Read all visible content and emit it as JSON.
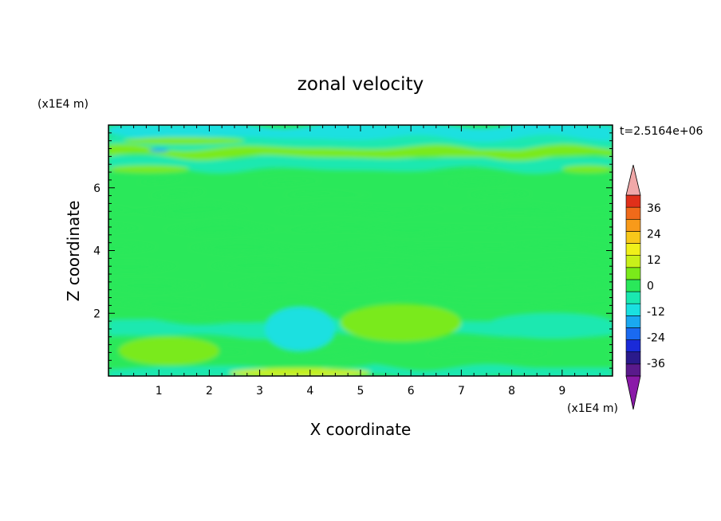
{
  "chart_data": {
    "type": "heatmap",
    "title": "zonal velocity",
    "xlabel": "X coordinate",
    "ylabel": "Z coordinate",
    "x_unit": "(x1E4 m)",
    "y_unit": "(x1E4 m)",
    "time_label": "t=2.5164e+06",
    "xlim": [
      0,
      10
    ],
    "ylim": [
      0,
      8
    ],
    "x_ticks": [
      1,
      2,
      3,
      4,
      5,
      6,
      7,
      8,
      9
    ],
    "y_ticks": [
      2,
      4,
      6
    ],
    "colorbar": {
      "min": -42,
      "max": 42,
      "step": 6,
      "extend": "both",
      "tick_values": [
        36,
        24,
        12,
        0,
        -12,
        -24,
        -36
      ],
      "tick_labels": [
        "36",
        "24",
        "12",
        "0",
        "-12",
        "-24",
        "-36"
      ],
      "colors": [
        "#5a1a8c",
        "#2a1a8c",
        "#1a2ad8",
        "#1a6af0",
        "#1aa8f0",
        "#1ae0e0",
        "#1ae8b0",
        "#2ae85a",
        "#7aea1a",
        "#c8f01a",
        "#f0f01a",
        "#f8c81a",
        "#f89a1a",
        "#f06a1a",
        "#e0301a"
      ],
      "under_color": "#8a1aa8",
      "over_color": "#f0a8a8"
    },
    "bands": [
      {
        "z": 0.15,
        "value": -4
      },
      {
        "z": 0.5,
        "value": 1
      },
      {
        "z": 1.0,
        "value": 3
      },
      {
        "z": 1.5,
        "value": -2
      },
      {
        "z": 2.0,
        "value": 1
      },
      {
        "z": 2.6,
        "value": 2
      },
      {
        "z": 3.2,
        "value": 1
      },
      {
        "z": 3.8,
        "value": 2
      },
      {
        "z": 4.4,
        "value": 1
      },
      {
        "z": 5.0,
        "value": 2
      },
      {
        "z": 5.6,
        "value": 1
      },
      {
        "z": 6.0,
        "value": 2
      },
      {
        "z": 6.4,
        "value": 5
      },
      {
        "z": 6.8,
        "value": -5
      },
      {
        "z": 7.2,
        "value": 7
      },
      {
        "z": 7.5,
        "value": -6
      },
      {
        "z": 7.8,
        "value": -12
      }
    ],
    "features": [
      {
        "x": 1.2,
        "z": 0.8,
        "rx": 1.0,
        "rz": 0.45,
        "value": 6
      },
      {
        "x": 0.8,
        "z": 0.8,
        "rx": 0.3,
        "rz": 0.15,
        "value": 10
      },
      {
        "x": 3.8,
        "z": 1.5,
        "rx": 0.7,
        "rz": 0.7,
        "value": -9
      },
      {
        "x": 5.8,
        "z": 1.7,
        "rx": 1.2,
        "rz": 0.6,
        "value": 6
      },
      {
        "x": 5.7,
        "z": 1.7,
        "rx": 0.4,
        "rz": 0.25,
        "value": 10
      },
      {
        "x": 8.8,
        "z": 1.6,
        "rx": 1.3,
        "rz": 0.4,
        "value": -5
      },
      {
        "x": 3.8,
        "z": 0.1,
        "rx": 1.4,
        "rz": 0.15,
        "value": 12
      },
      {
        "x": 7.2,
        "z": 7.1,
        "rx": 2.5,
        "rz": 0.12,
        "value": 8
      },
      {
        "x": 1.5,
        "z": 7.5,
        "rx": 1.2,
        "rz": 0.12,
        "value": 9
      },
      {
        "x": 0.8,
        "z": 6.6,
        "rx": 0.8,
        "rz": 0.12,
        "value": 8
      },
      {
        "x": 9.5,
        "z": 6.6,
        "rx": 0.5,
        "rz": 0.12,
        "value": 8
      },
      {
        "x": 1.0,
        "z": 7.2,
        "rx": 0.2,
        "rz": 0.06,
        "value": -16
      }
    ]
  }
}
